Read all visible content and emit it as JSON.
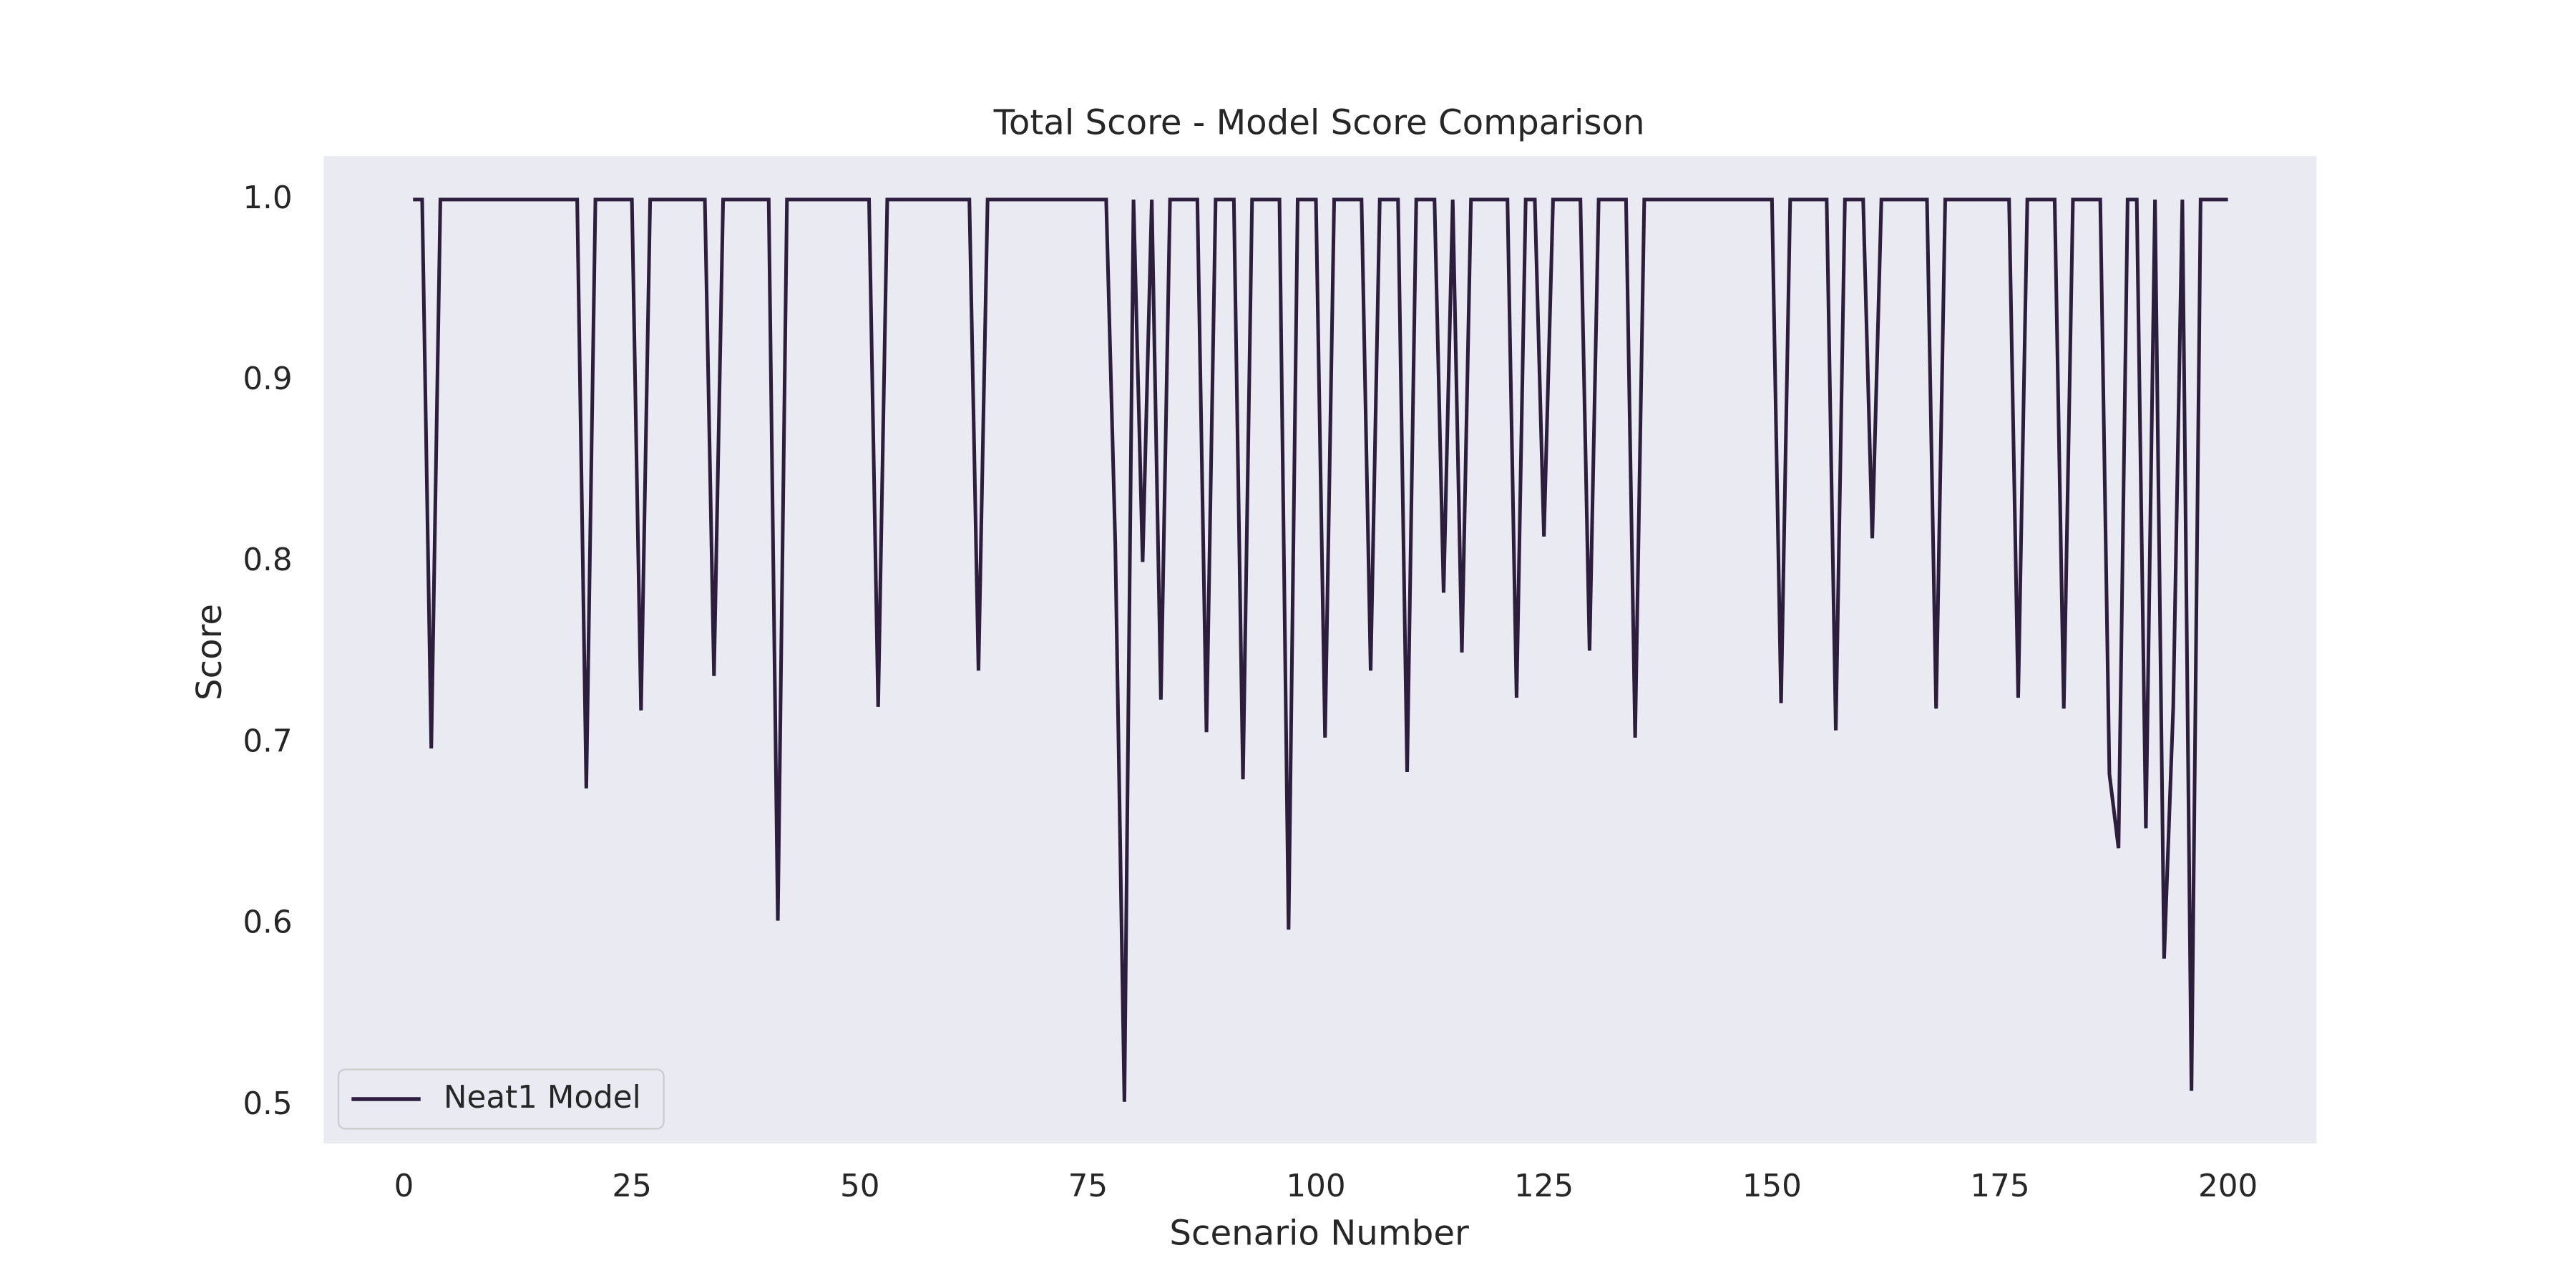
{
  "chart_data": {
    "type": "line",
    "title": "Total Score - Model Score Comparison",
    "x_label": "Scenario Number",
    "y_label": "Score",
    "x": [
      1,
      2,
      3,
      4,
      5,
      6,
      7,
      8,
      9,
      10,
      11,
      12,
      13,
      14,
      15,
      16,
      17,
      18,
      19,
      20,
      21,
      22,
      23,
      24,
      25,
      26,
      27,
      28,
      29,
      30,
      31,
      32,
      33,
      34,
      35,
      36,
      37,
      38,
      39,
      40,
      41,
      42,
      43,
      44,
      45,
      46,
      47,
      48,
      49,
      50,
      51,
      52,
      53,
      54,
      55,
      56,
      57,
      58,
      59,
      60,
      61,
      62,
      63,
      64,
      65,
      66,
      67,
      68,
      69,
      70,
      71,
      72,
      73,
      74,
      75,
      76,
      77,
      78,
      79,
      80,
      81,
      82,
      83,
      84,
      85,
      86,
      87,
      88,
      89,
      90,
      91,
      92,
      93,
      94,
      95,
      96,
      97,
      98,
      99,
      100,
      101,
      102,
      103,
      104,
      105,
      106,
      107,
      108,
      109,
      110,
      111,
      112,
      113,
      114,
      115,
      116,
      117,
      118,
      119,
      120,
      121,
      122,
      123,
      124,
      125,
      126,
      127,
      128,
      129,
      130,
      131,
      132,
      133,
      134,
      135,
      136,
      137,
      138,
      139,
      140,
      141,
      142,
      143,
      144,
      145,
      146,
      147,
      148,
      149,
      150,
      151,
      152,
      153,
      154,
      155,
      156,
      157,
      158,
      159,
      160,
      161,
      162,
      163,
      164,
      165,
      166,
      167,
      168,
      169,
      170,
      171,
      172,
      173,
      174,
      175,
      176,
      177,
      178,
      179,
      180,
      181,
      182,
      183,
      184,
      185,
      186,
      187,
      188,
      189,
      190,
      191,
      192,
      193,
      194,
      195,
      196,
      197,
      198,
      199,
      200
    ],
    "series": [
      {
        "name": "Neat1 Model",
        "color": "#2d1e3e",
        "values": [
          1,
          1,
          0.697,
          1,
          1,
          1,
          1,
          1,
          1,
          1,
          1,
          1,
          1,
          1,
          1,
          1,
          1,
          1,
          1,
          0.675,
          1,
          1,
          1,
          1,
          1,
          0.718,
          1,
          1,
          1,
          1,
          1,
          1,
          1,
          0.737,
          1,
          1,
          1,
          1,
          1,
          1,
          0.602,
          1,
          1,
          1,
          1,
          1,
          1,
          1,
          1,
          1,
          1,
          0.72,
          1,
          1,
          1,
          1,
          1,
          1,
          1,
          1,
          1,
          1,
          0.74,
          1,
          1,
          1,
          1,
          1,
          1,
          1,
          1,
          1,
          1,
          1,
          1,
          1,
          1,
          0.81,
          0.502,
          1,
          0.8,
          1,
          0.724,
          1,
          1,
          1,
          1,
          0.706,
          1,
          1,
          1,
          0.68,
          1,
          1,
          1,
          1,
          0.597,
          1,
          1,
          1,
          0.703,
          1,
          1,
          1,
          1,
          0.74,
          1,
          1,
          1,
          0.684,
          1,
          1,
          1,
          0.783,
          1,
          0.75,
          1,
          1,
          1,
          1,
          1,
          0.725,
          1,
          1,
          0.814,
          1,
          1,
          1,
          1,
          0.751,
          1,
          1,
          1,
          1,
          0.703,
          1,
          1,
          1,
          1,
          1,
          1,
          1,
          1,
          1,
          1,
          1,
          1,
          1,
          1,
          1,
          0.722,
          1,
          1,
          1,
          1,
          1,
          0.707,
          1,
          1,
          1,
          0.813,
          1,
          1,
          1,
          1,
          1,
          1,
          0.719,
          1,
          1,
          1,
          1,
          1,
          1,
          1,
          1,
          0.725,
          1,
          1,
          1,
          1,
          0.719,
          1,
          1,
          1,
          1,
          0.683,
          0.642,
          1,
          1,
          0.653,
          1,
          0.581,
          0.72,
          1,
          0.508,
          1,
          1,
          1,
          1
        ]
      }
    ],
    "xlim": [
      -8.8,
      209.7
    ],
    "ylim": [
      0.479,
      1.024
    ],
    "xticks": [
      0,
      25,
      50,
      75,
      100,
      125,
      150,
      175,
      200
    ],
    "yticks": [
      0.5,
      0.6,
      0.7,
      0.8,
      0.9,
      {
        "value": 1,
        "label": "1.0"
      }
    ],
    "grid": false,
    "legend_loc": "lower left"
  }
}
